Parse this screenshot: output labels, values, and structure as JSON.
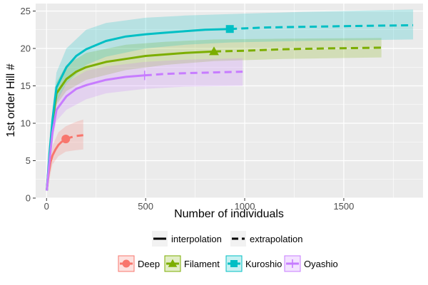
{
  "chart_data": {
    "type": "line",
    "title": "",
    "xlabel": "Number of individuals",
    "ylabel": "1st order Hill #",
    "xlim": [
      -55,
      1900
    ],
    "ylim": [
      0,
      26
    ],
    "x_ticks": [
      0,
      500,
      1000,
      1500
    ],
    "y_ticks": [
      0,
      5,
      10,
      15,
      20,
      25
    ],
    "x_tick_labels": [
      "0",
      "500",
      "1000",
      "1500"
    ],
    "y_tick_labels": [
      "0",
      "5",
      "10",
      "15",
      "20",
      "25"
    ],
    "grid": true,
    "legend_position": "bottom",
    "linetype_legend": [
      "interpolation",
      "extrapolation"
    ],
    "series": [
      {
        "name": "Deep",
        "color": "#F8766D",
        "marker": "circle",
        "observed": {
          "x": 97,
          "y": 7.9
        },
        "interpolation": [
          [
            1,
            1.0
          ],
          [
            10,
            3.2
          ],
          [
            20,
            4.8
          ],
          [
            30,
            5.7
          ],
          [
            45,
            6.5
          ],
          [
            60,
            7.1
          ],
          [
            75,
            7.5
          ],
          [
            97,
            7.9
          ]
        ],
        "extrapolation": [
          [
            97,
            7.9
          ],
          [
            120,
            8.1
          ],
          [
            150,
            8.3
          ],
          [
            185,
            8.4
          ]
        ],
        "ci_upper": [
          [
            1,
            1.0
          ],
          [
            30,
            7.0
          ],
          [
            60,
            8.8
          ],
          [
            97,
            9.6
          ],
          [
            150,
            10.2
          ],
          [
            185,
            10.5
          ]
        ],
        "ci_lower": [
          [
            185,
            6.5
          ],
          [
            150,
            6.4
          ],
          [
            97,
            6.2
          ],
          [
            60,
            5.6
          ],
          [
            30,
            4.5
          ],
          [
            1,
            1.0
          ]
        ]
      },
      {
        "name": "Filament",
        "color": "#7CAE00",
        "marker": "triangle",
        "observed": {
          "x": 845,
          "y": 19.6
        },
        "interpolation": [
          [
            1,
            1.0
          ],
          [
            15,
            5.5
          ],
          [
            30,
            10.0
          ],
          [
            50,
            14.0
          ],
          [
            100,
            15.9
          ],
          [
            150,
            16.9
          ],
          [
            200,
            17.5
          ],
          [
            300,
            18.2
          ],
          [
            400,
            18.6
          ],
          [
            500,
            19.0
          ],
          [
            600,
            19.2
          ],
          [
            700,
            19.4
          ],
          [
            845,
            19.6
          ]
        ],
        "extrapolation": [
          [
            845,
            19.6
          ],
          [
            1000,
            19.7
          ],
          [
            1200,
            19.9
          ],
          [
            1400,
            20.0
          ],
          [
            1690,
            20.1
          ]
        ],
        "ci_upper": [
          [
            1,
            1.0
          ],
          [
            30,
            11.5
          ],
          [
            50,
            15.5
          ],
          [
            100,
            17.8
          ],
          [
            200,
            19.4
          ],
          [
            400,
            20.5
          ],
          [
            600,
            20.9
          ],
          [
            845,
            21.2
          ],
          [
            1200,
            21.3
          ],
          [
            1690,
            21.4
          ]
        ],
        "ci_lower": [
          [
            1690,
            18.8
          ],
          [
            1200,
            18.6
          ],
          [
            845,
            18.3
          ],
          [
            600,
            17.8
          ],
          [
            400,
            17.1
          ],
          [
            200,
            15.8
          ],
          [
            100,
            14.3
          ],
          [
            50,
            12.5
          ],
          [
            30,
            8.8
          ],
          [
            1,
            1.0
          ]
        ]
      },
      {
        "name": "Kuroshio",
        "color": "#00BFC4",
        "marker": "square",
        "observed": {
          "x": 925,
          "y": 22.6
        },
        "interpolation": [
          [
            1,
            1.0
          ],
          [
            15,
            6.0
          ],
          [
            30,
            10.5
          ],
          [
            50,
            14.8
          ],
          [
            100,
            17.5
          ],
          [
            150,
            19.0
          ],
          [
            200,
            19.9
          ],
          [
            300,
            21.0
          ],
          [
            400,
            21.6
          ],
          [
            500,
            21.9
          ],
          [
            600,
            22.1
          ],
          [
            700,
            22.3
          ],
          [
            800,
            22.5
          ],
          [
            925,
            22.6
          ]
        ],
        "extrapolation": [
          [
            925,
            22.6
          ],
          [
            1100,
            22.8
          ],
          [
            1300,
            22.9
          ],
          [
            1550,
            23.0
          ],
          [
            1850,
            23.1
          ]
        ],
        "ci_upper": [
          [
            1,
            1.0
          ],
          [
            30,
            12.0
          ],
          [
            50,
            16.8
          ],
          [
            100,
            20.0
          ],
          [
            200,
            22.5
          ],
          [
            300,
            23.4
          ],
          [
            500,
            24.1
          ],
          [
            700,
            24.4
          ],
          [
            925,
            24.6
          ],
          [
            1300,
            24.9
          ],
          [
            1850,
            25.2
          ]
        ],
        "ci_lower": [
          [
            1850,
            21.2
          ],
          [
            1300,
            21.0
          ],
          [
            925,
            20.8
          ],
          [
            700,
            20.5
          ],
          [
            500,
            20.0
          ],
          [
            300,
            18.9
          ],
          [
            200,
            17.8
          ],
          [
            100,
            15.3
          ],
          [
            50,
            12.8
          ],
          [
            30,
            9.2
          ],
          [
            1,
            1.0
          ]
        ]
      },
      {
        "name": "Oyashio",
        "color": "#C77CFF",
        "marker": "plus",
        "observed": {
          "x": 495,
          "y": 16.4
        },
        "interpolation": [
          [
            1,
            1.0
          ],
          [
            15,
            5.0
          ],
          [
            30,
            8.8
          ],
          [
            50,
            11.8
          ],
          [
            100,
            13.6
          ],
          [
            150,
            14.6
          ],
          [
            200,
            15.1
          ],
          [
            300,
            15.8
          ],
          [
            400,
            16.2
          ],
          [
            495,
            16.4
          ]
        ],
        "extrapolation": [
          [
            495,
            16.4
          ],
          [
            600,
            16.6
          ],
          [
            700,
            16.7
          ],
          [
            850,
            16.8
          ],
          [
            990,
            16.9
          ]
        ],
        "ci_upper": [
          [
            1,
            1.0
          ],
          [
            30,
            9.8
          ],
          [
            50,
            13.2
          ],
          [
            100,
            15.5
          ],
          [
            200,
            17.0
          ],
          [
            300,
            17.6
          ],
          [
            495,
            18.2
          ],
          [
            700,
            18.5
          ],
          [
            990,
            18.7
          ]
        ],
        "ci_lower": [
          [
            990,
            15.0
          ],
          [
            700,
            14.9
          ],
          [
            495,
            14.6
          ],
          [
            300,
            14.0
          ],
          [
            200,
            13.2
          ],
          [
            100,
            11.8
          ],
          [
            50,
            10.3
          ],
          [
            30,
            7.9
          ],
          [
            1,
            1.0
          ]
        ]
      }
    ]
  }
}
